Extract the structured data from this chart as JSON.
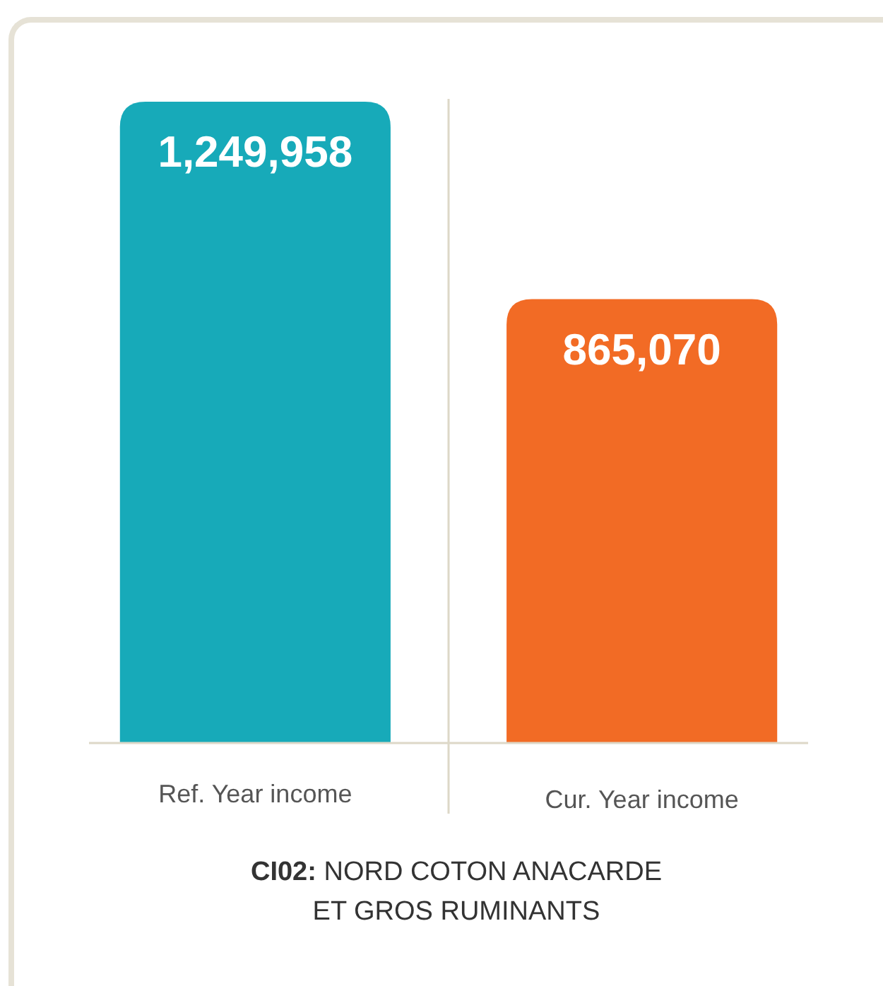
{
  "chart_data": {
    "type": "bar",
    "title": "CI02: NORD COTON ANACARDE ET GROS RUMINANTS",
    "categories": [
      "Ref. Year income",
      "Cur. Year income"
    ],
    "values": [
      1249958,
      865070
    ],
    "colors": [
      "#17aab9",
      "#f26b25"
    ],
    "value_labels": [
      "1,249,958",
      "865,070"
    ]
  }
}
